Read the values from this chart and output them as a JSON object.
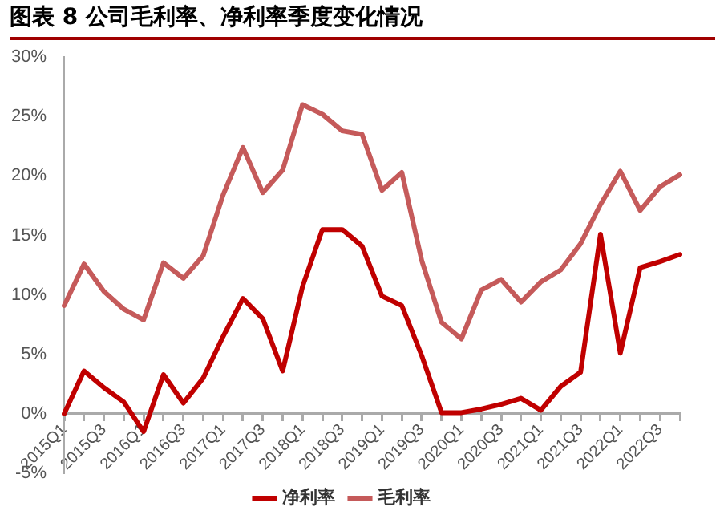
{
  "chart_data": {
    "type": "line",
    "title": "图表 8  公司毛利率、净利率季度变化情况",
    "categories": [
      "2015Q1",
      null,
      "2015Q3",
      null,
      "2016Q1",
      null,
      "2016Q3",
      null,
      "2017Q1",
      null,
      "2017Q3",
      null,
      "2018Q1",
      null,
      "2018Q3",
      null,
      "2019Q1",
      null,
      "2019Q3",
      null,
      "2020Q1",
      null,
      "2020Q3",
      null,
      "2021Q1",
      null,
      "2021Q3",
      null,
      "2022Q1",
      null,
      "2022Q3",
      null
    ],
    "series": [
      {
        "name": "净利率",
        "color": "#c00000",
        "values": [
          0,
          3.6,
          2.2,
          1,
          -1.5,
          3.3,
          0.9,
          3,
          6.5,
          9.7,
          8,
          3.6,
          10.7,
          15.5,
          15.5,
          14.1,
          9.9,
          9.1,
          4.9,
          0.1,
          0.1,
          0.4,
          0.8,
          1.3,
          0.3,
          2.3,
          3.5,
          15.1,
          5.1,
          12.3,
          12.8,
          13.4
        ]
      },
      {
        "name": "毛利率",
        "color": "#c55a5a",
        "values": [
          9.1,
          12.6,
          10.3,
          8.8,
          7.9,
          12.7,
          11.4,
          13.3,
          18.4,
          22.4,
          18.6,
          20.5,
          26,
          25.2,
          23.8,
          23.5,
          18.8,
          20.3,
          12.9,
          7.7,
          6.3,
          10.4,
          11.3,
          9.4,
          11.1,
          12.1,
          14.3,
          17.6,
          20.4,
          17.1,
          19.1,
          20.1
        ]
      }
    ],
    "ylim": [
      -5,
      30
    ],
    "yticks": [
      {
        "value": -5,
        "label": "-5%"
      },
      {
        "value": 0,
        "label": "0%"
      },
      {
        "value": 5,
        "label": "5%"
      },
      {
        "value": 10,
        "label": "10%"
      },
      {
        "value": 15,
        "label": "15%"
      },
      {
        "value": 20,
        "label": "20%"
      },
      {
        "value": 25,
        "label": "25%"
      },
      {
        "value": 30,
        "label": "30%"
      }
    ],
    "grid": false,
    "legend": "bottom",
    "marker": "none",
    "line_style": "solid"
  }
}
